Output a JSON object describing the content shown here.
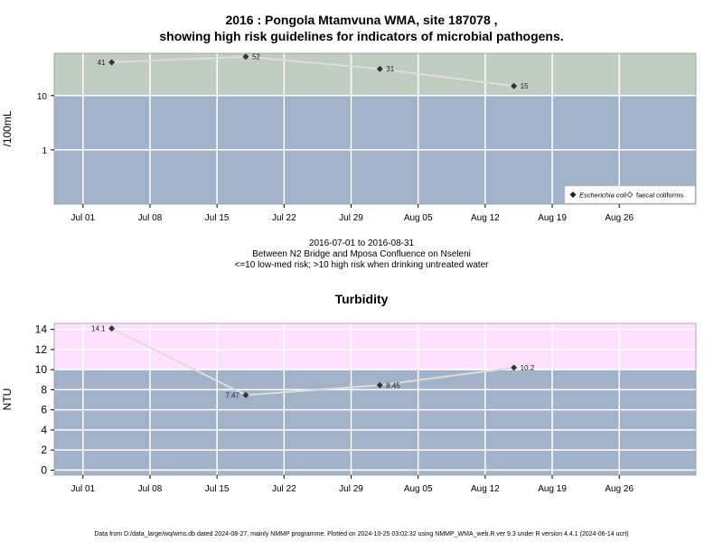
{
  "title_line1": "2016 : Pongola Mtamvuna WMA, site 187078 ,",
  "title_line2": "showing high risk guidelines for indicators of microbial pathogens.",
  "info_line1": "2016-07-01 to 2016-08-31",
  "info_line2": "Between N2 Bridge and Mposa Confluence on Nseleni",
  "info_line3": "<=10 low-med risk; >10 high risk when drinking untreated water",
  "turbidity_title": "Turbidity",
  "footer": "Data from D:/data_large/wq/wms.db dated 2024-08-27, mainly NMMP programme. Plotted on 2024-10-25 03:02:32 using NMMP_WMA_web.R ver 9.3 under R version 4.4.1 (2024-06-14 ucrt)",
  "colors": {
    "low_risk_band": "#a2b2c9",
    "high_risk_band_microbial": "#c1cdc1",
    "high_risk_band_turbidity": "#ffe0ff",
    "series_line": "#dddddd",
    "grid": "#ffffff",
    "point": "#333333"
  },
  "chart_data": [
    {
      "type": "line",
      "ylabel": "/100mL",
      "y_scale": "log",
      "ylim": [
        0.1,
        60
      ],
      "threshold": 10,
      "x_ticks": [
        "Jul 01",
        "Jul 08",
        "Jul 15",
        "Jul 22",
        "Jul 29",
        "Aug 05",
        "Aug 12",
        "Aug 19",
        "Aug 26"
      ],
      "x_tick_dates": [
        "2016-07-01",
        "2016-07-08",
        "2016-07-15",
        "2016-07-22",
        "2016-07-29",
        "2016-08-05",
        "2016-08-12",
        "2016-08-19",
        "2016-08-26"
      ],
      "y_ticks": [
        1,
        10
      ],
      "y_tick_labels": [
        "1",
        "10"
      ],
      "legend_position": "bottom-right",
      "legend": [
        {
          "label": "Escherichia coli",
          "marker": "filled-diamond"
        },
        {
          "label": "faecal coliforms",
          "marker": "open-diamond"
        }
      ],
      "series": [
        {
          "name": "Escherichia coli",
          "x": [
            "2016-07-04",
            "2016-07-18",
            "2016-08-01",
            "2016-08-15"
          ],
          "values": [
            41,
            52,
            31,
            15
          ],
          "labels": [
            "41",
            "52",
            "31",
            "15"
          ],
          "label_sides": [
            "left",
            "right",
            "right",
            "right"
          ]
        }
      ]
    },
    {
      "type": "line",
      "ylabel": "NTU",
      "ylim": [
        -0.5,
        14.6
      ],
      "threshold": 10,
      "x_ticks": [
        "Jul 01",
        "Jul 08",
        "Jul 15",
        "Jul 22",
        "Jul 29",
        "Aug 05",
        "Aug 12",
        "Aug 19",
        "Aug 26"
      ],
      "x_tick_dates": [
        "2016-07-01",
        "2016-07-08",
        "2016-07-15",
        "2016-07-22",
        "2016-07-29",
        "2016-08-05",
        "2016-08-12",
        "2016-08-19",
        "2016-08-26"
      ],
      "y_ticks": [
        0,
        2,
        4,
        6,
        8,
        10,
        12,
        14
      ],
      "y_tick_labels": [
        "0",
        "2",
        "4",
        "6",
        "8",
        "10",
        "12",
        "14"
      ],
      "series": [
        {
          "x": [
            "2016-07-04",
            "2016-07-18",
            "2016-08-01",
            "2016-08-15"
          ],
          "values": [
            14.1,
            7.47,
            8.45,
            10.2
          ],
          "labels": [
            "14.1",
            "7.47",
            "8.45",
            "10.2"
          ],
          "label_sides": [
            "left",
            "left",
            "right",
            "right"
          ]
        }
      ]
    }
  ]
}
